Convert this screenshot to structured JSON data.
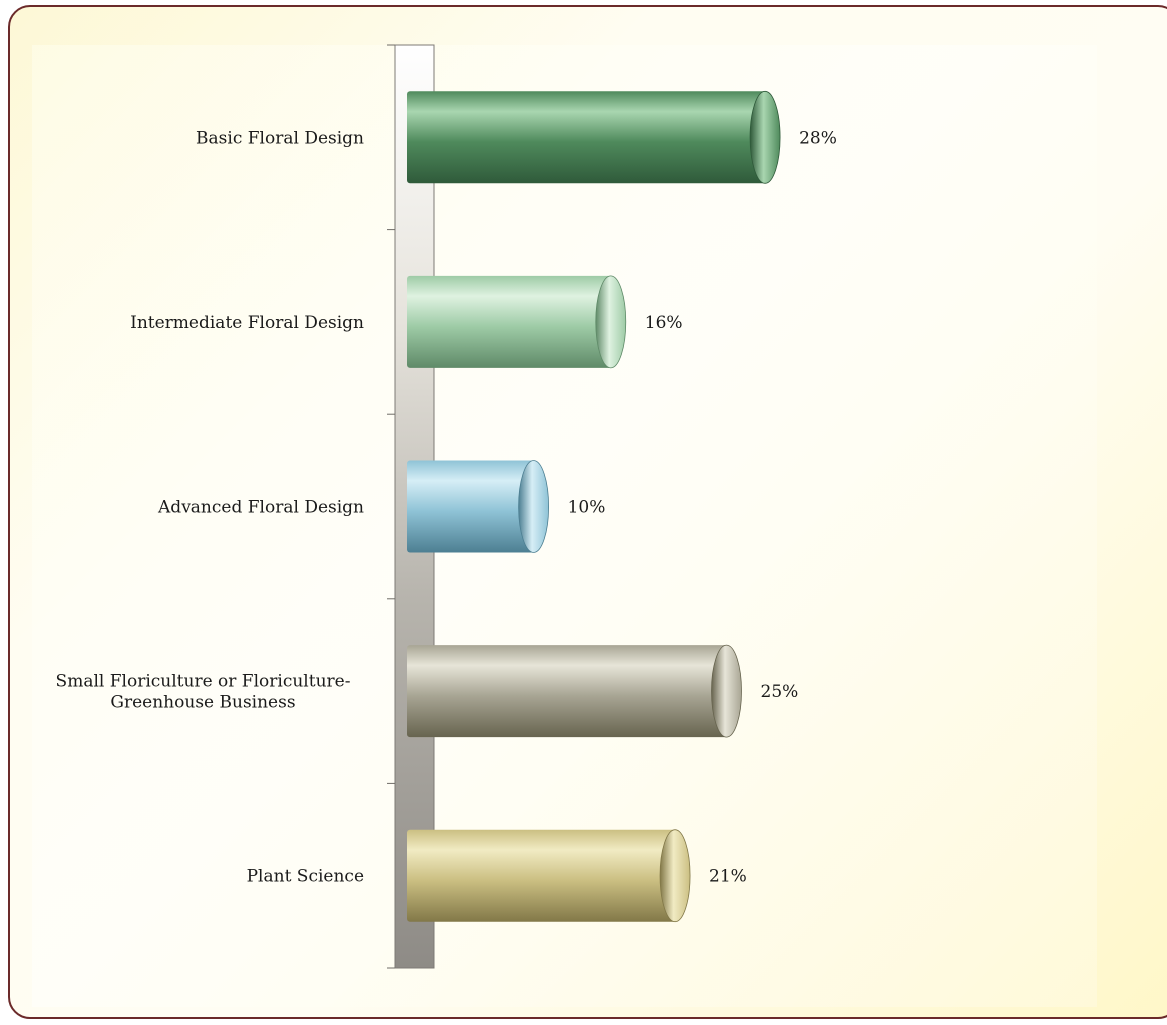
{
  "chart_data": {
    "type": "bar",
    "orientation": "horizontal",
    "categories": [
      [
        "Basic Floral Design"
      ],
      [
        "Intermediate Floral Design"
      ],
      [
        "Advanced Floral Design"
      ],
      [
        "Small Floriculture or Floriculture-",
        "Greenhouse Business"
      ],
      [
        "Plant Science"
      ]
    ],
    "values": [
      28,
      16,
      10,
      25,
      21
    ],
    "value_labels": [
      "28%",
      "16%",
      "10%",
      "25%",
      "21%"
    ],
    "value_unit": "%",
    "title": "",
    "xlabel": "",
    "ylabel": "",
    "xlim": [
      0,
      50
    ],
    "grid": false,
    "legend": "none",
    "bar_style": "3d-cylinder",
    "bar_colors": [
      "#4f8a5c",
      "#9ecba6",
      "#8fc3d6",
      "#a8a594",
      "#cbbf82"
    ],
    "bar_light_colors": [
      "#a9d6b0",
      "#dff2e1",
      "#d6eef6",
      "#e7e5d8",
      "#f1ebc3"
    ],
    "bar_dark_colors": [
      "#2f5a3a",
      "#5f8a68",
      "#4d7f92",
      "#67644f",
      "#827848"
    ]
  },
  "colors": {
    "frame_border": "#6b2a2a",
    "axis_wall_light": "#ffffff",
    "axis_wall_dark": "#8e8b86"
  }
}
